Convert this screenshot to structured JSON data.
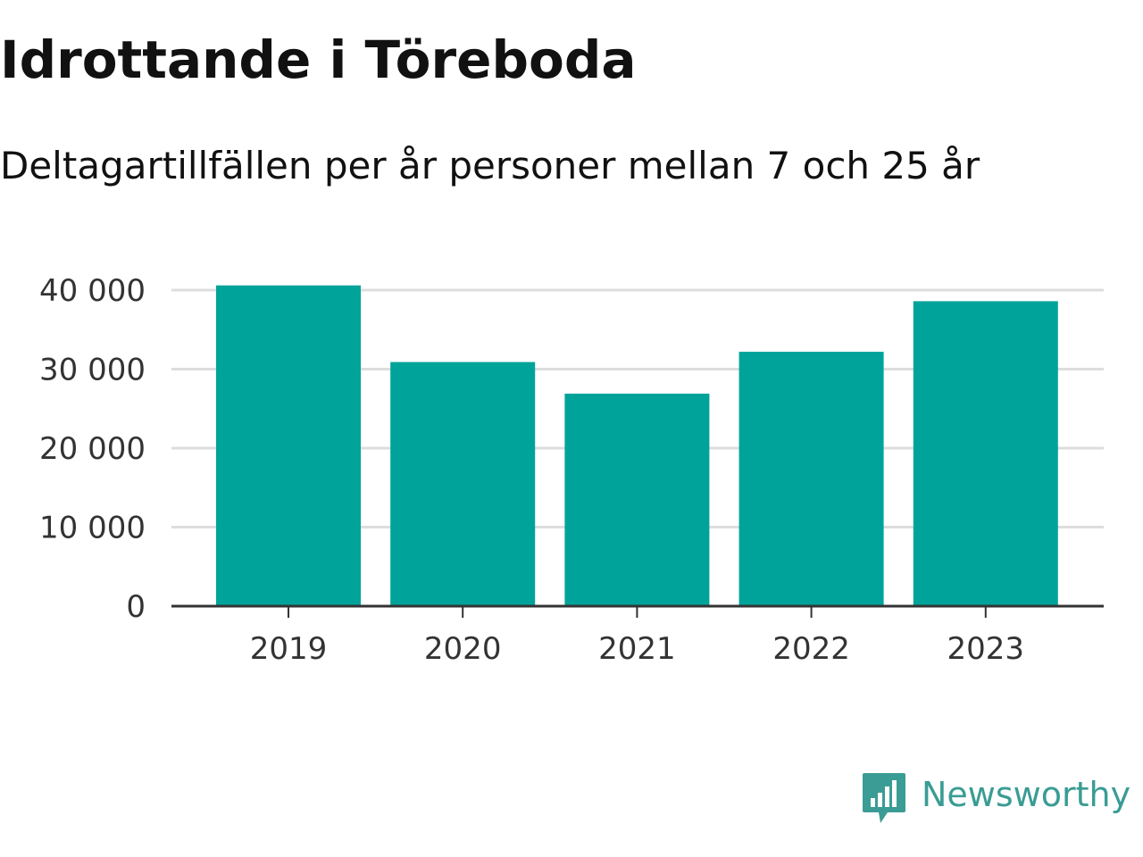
{
  "chart_data": {
    "type": "bar",
    "title": "Idrottande i Töreboda",
    "subtitle": "Deltagartillfällen per år personer mellan 7 och 25 år",
    "categories": [
      "2019",
      "2020",
      "2021",
      "2022",
      "2023"
    ],
    "values": [
      40600,
      30900,
      26900,
      32200,
      38600
    ],
    "ylim": [
      0,
      40000
    ],
    "yticks": [
      0,
      10000,
      20000,
      30000,
      40000
    ],
    "ytick_labels": [
      "0",
      "10 000",
      "20 000",
      "30 000",
      "40 000"
    ],
    "xlabel": "",
    "ylabel": "",
    "grid": true,
    "bar_color": "#00a39a",
    "grid_color": "#dddddd",
    "axis_color": "#333333"
  },
  "brand": {
    "name": "Newsworthy",
    "icon": "newsworthy-logo-icon",
    "color": "#3a9c94"
  }
}
